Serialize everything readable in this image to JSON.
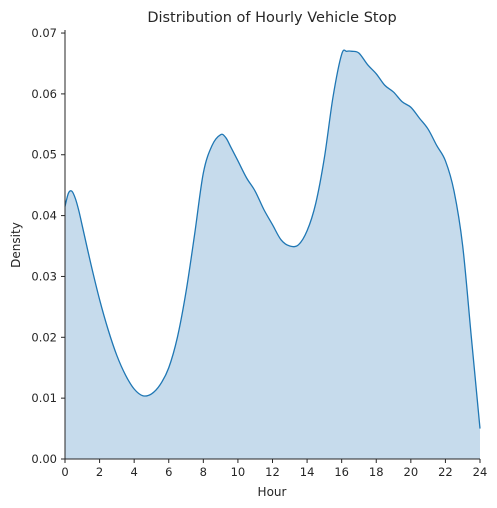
{
  "chart_data": {
    "type": "area",
    "title": "Distribution of Hourly Vehicle Stop",
    "xlabel": "Hour",
    "ylabel": "Density",
    "xlim": [
      0,
      24
    ],
    "ylim": [
      0,
      0.0705
    ],
    "x_ticks": [
      0,
      2,
      4,
      6,
      8,
      10,
      12,
      14,
      16,
      18,
      20,
      22,
      24
    ],
    "y_ticks": [
      0.0,
      0.01,
      0.02,
      0.03,
      0.04,
      0.05,
      0.06,
      0.07
    ],
    "y_tick_labels": [
      "0.00",
      "0.01",
      "0.02",
      "0.03",
      "0.04",
      "0.05",
      "0.06",
      "0.07"
    ],
    "grid": false,
    "colors": {
      "line": "#1f77b4",
      "fill": "#c6dbec",
      "axis": "#262626"
    },
    "series": [
      {
        "x": [
          0,
          0.2,
          0.4,
          0.6,
          0.8,
          1,
          1.5,
          2,
          2.5,
          3,
          3.5,
          4,
          4.5,
          5,
          5.5,
          6,
          6.5,
          7,
          7.5,
          8,
          8.5,
          9,
          9.3,
          9.6,
          10,
          10.5,
          11,
          11.5,
          12,
          12.5,
          13,
          13.5,
          14,
          14.5,
          15,
          15.5,
          16,
          16.3,
          16.6,
          17,
          17.5,
          18,
          18.5,
          19,
          19.5,
          20,
          20.5,
          21,
          21.5,
          22,
          22.5,
          23,
          23.5,
          24
        ],
        "y": [
          0.0415,
          0.0437,
          0.044,
          0.0428,
          0.0408,
          0.0383,
          0.032,
          0.0262,
          0.0212,
          0.017,
          0.0138,
          0.0115,
          0.0104,
          0.0107,
          0.0122,
          0.015,
          0.02,
          0.0275,
          0.037,
          0.047,
          0.0515,
          0.0533,
          0.0528,
          0.0512,
          0.049,
          0.0462,
          0.044,
          0.041,
          0.0385,
          0.036,
          0.035,
          0.0352,
          0.0375,
          0.042,
          0.0495,
          0.0595,
          0.0665,
          0.067,
          0.067,
          0.0667,
          0.0648,
          0.0633,
          0.0614,
          0.0603,
          0.0587,
          0.0578,
          0.056,
          0.0542,
          0.0515,
          0.049,
          0.044,
          0.035,
          0.02,
          0.005
        ]
      }
    ]
  }
}
